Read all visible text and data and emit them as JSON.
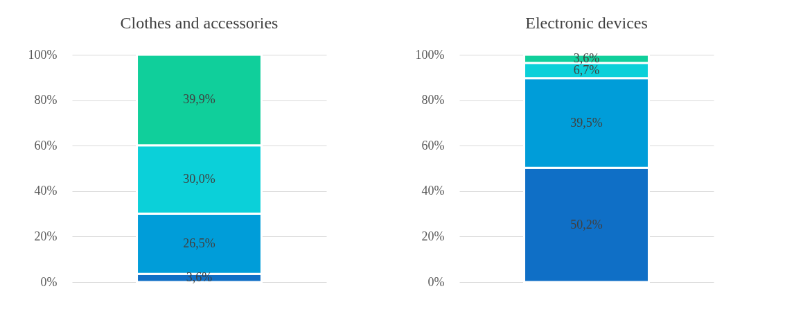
{
  "chart_data": [
    {
      "type": "bar",
      "stacked": true,
      "title": "Clothes and accessories",
      "categories": [
        null
      ],
      "tick_labels": "y",
      "grid": "y",
      "ylim": [
        0,
        100
      ],
      "yticks": [
        {
          "value": 0,
          "label": "0%"
        },
        {
          "value": 20,
          "label": "20%"
        },
        {
          "value": 40,
          "label": "40%"
        },
        {
          "value": 60,
          "label": "60%"
        },
        {
          "value": 80,
          "label": "80%"
        },
        {
          "value": 100,
          "label": "100%"
        }
      ],
      "series": [
        {
          "color": "#0f6fc6",
          "values": [
            3.6
          ],
          "value_labels": [
            "3,6%"
          ]
        },
        {
          "color": "#009dd9",
          "values": [
            26.5
          ],
          "value_labels": [
            "26,5%"
          ]
        },
        {
          "color": "#0bd0d9",
          "values": [
            30.0
          ],
          "value_labels": [
            "30,0%"
          ]
        },
        {
          "color": "#10cf9b",
          "values": [
            39.9
          ],
          "value_labels": [
            "39,9%"
          ]
        }
      ]
    },
    {
      "type": "bar",
      "stacked": true,
      "title": "Electronic devices",
      "categories": [
        null
      ],
      "tick_labels": "y",
      "grid": "y",
      "ylim": [
        0,
        100
      ],
      "yticks": [
        {
          "value": 0,
          "label": "0%"
        },
        {
          "value": 20,
          "label": "20%"
        },
        {
          "value": 40,
          "label": "40%"
        },
        {
          "value": 60,
          "label": "60%"
        },
        {
          "value": 80,
          "label": "80%"
        },
        {
          "value": 100,
          "label": "100%"
        }
      ],
      "series": [
        {
          "color": "#0f6fc6",
          "values": [
            50.2
          ],
          "value_labels": [
            "50,2%"
          ]
        },
        {
          "color": "#009dd9",
          "values": [
            39.5
          ],
          "value_labels": [
            "39,5%"
          ]
        },
        {
          "color": "#0bd0d9",
          "values": [
            6.7
          ],
          "value_labels": [
            "6,7%"
          ]
        },
        {
          "color": "#10cf9b",
          "values": [
            3.6
          ],
          "value_labels": [
            "3,6%"
          ]
        }
      ]
    }
  ]
}
